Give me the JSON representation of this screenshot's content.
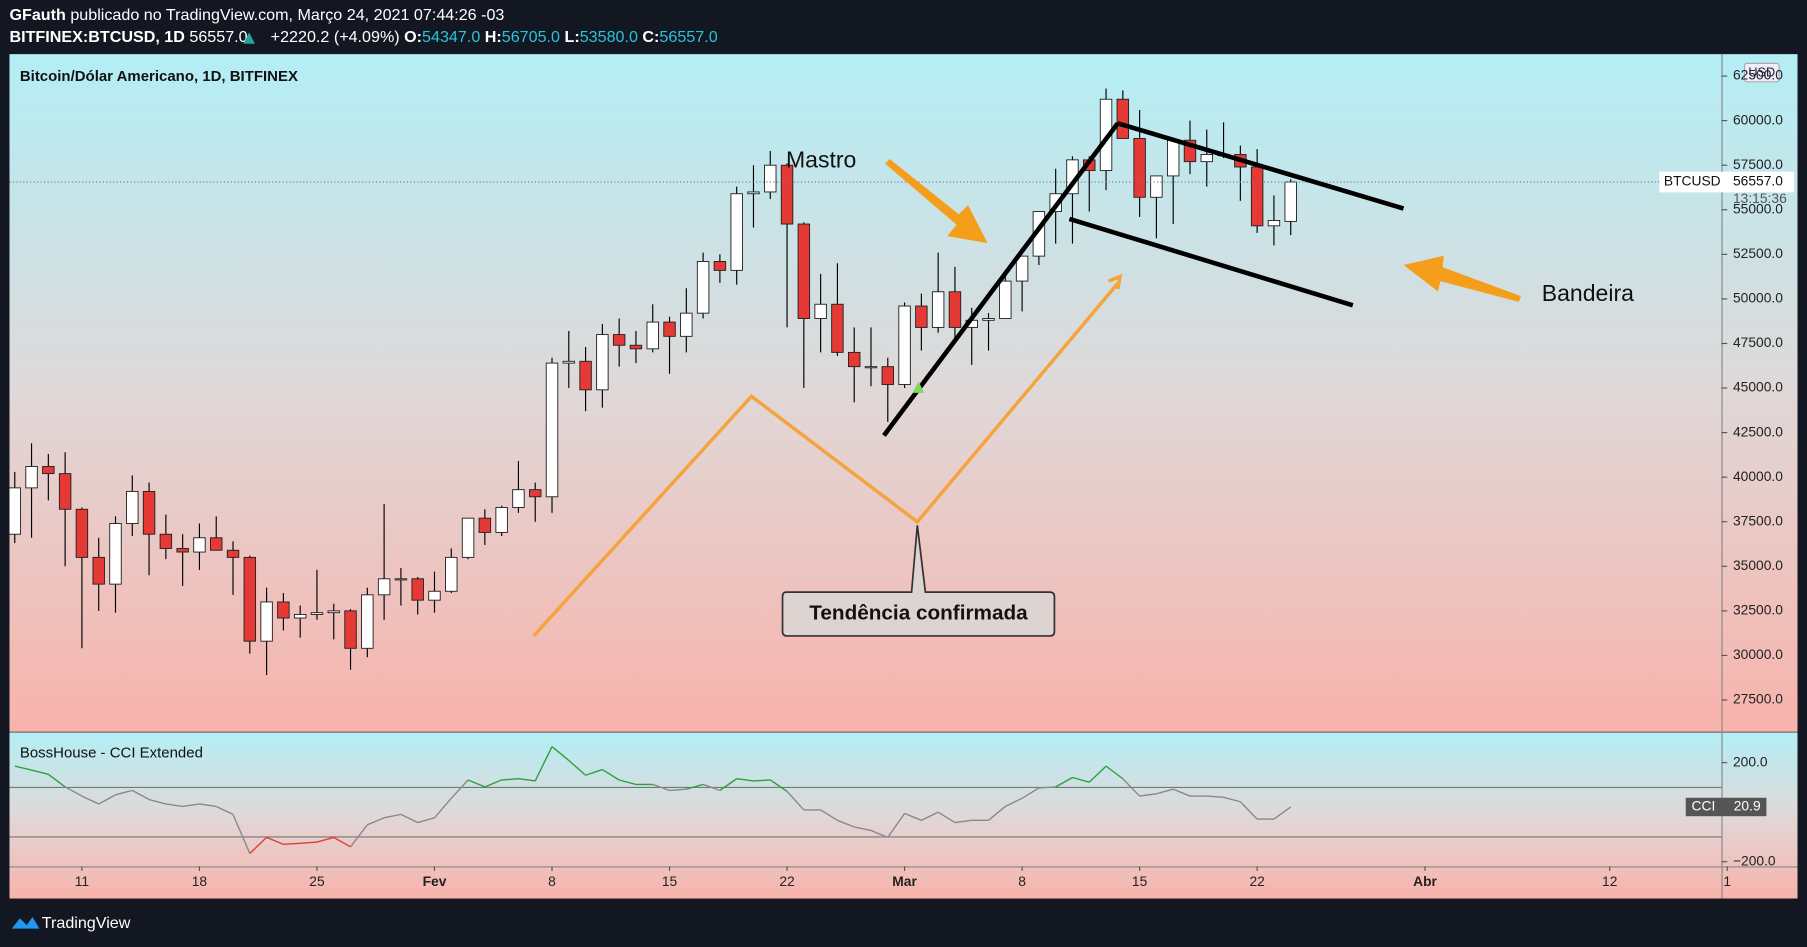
{
  "header": {
    "author": "GFauth",
    "published": "publicado no TradingView.com, Março 24, 2021 07:44:26 -03",
    "symbol": "BITFINEX:BTCUSD, 1D",
    "last": "56557.0",
    "change": "+2220.2 (+4.09%)",
    "o_label": "O:",
    "o": "54347.0",
    "h_label": "H:",
    "h": "56705.0",
    "l_label": "L:",
    "l": "53580.0",
    "c_label": "C:",
    "c": "56557.0"
  },
  "annotations": {
    "mastro": "Mastro",
    "bandeira": "Bandeira",
    "callout": "Tendência confirmada"
  },
  "footer": {
    "brand": "TradingView"
  },
  "chart_data": [
    {
      "type": "candlestick",
      "title": "Bitcoin/Dólar Americano, 1D, BITFINEX",
      "currency": "USD",
      "x": [
        "2021-01-07",
        "2021-01-08",
        "2021-01-09",
        "2021-01-10",
        "2021-01-11",
        "2021-01-12",
        "2021-01-13",
        "2021-01-14",
        "2021-01-15",
        "2021-01-16",
        "2021-01-17",
        "2021-01-18",
        "2021-01-19",
        "2021-01-20",
        "2021-01-21",
        "2021-01-22",
        "2021-01-23",
        "2021-01-24",
        "2021-01-25",
        "2021-01-26",
        "2021-01-27",
        "2021-01-28",
        "2021-01-29",
        "2021-01-30",
        "2021-01-31",
        "2021-02-01",
        "2021-02-02",
        "2021-02-03",
        "2021-02-04",
        "2021-02-05",
        "2021-02-06",
        "2021-02-07",
        "2021-02-08",
        "2021-02-09",
        "2021-02-10",
        "2021-02-11",
        "2021-02-12",
        "2021-02-13",
        "2021-02-14",
        "2021-02-15",
        "2021-02-16",
        "2021-02-17",
        "2021-02-18",
        "2021-02-19",
        "2021-02-20",
        "2021-02-21",
        "2021-02-22",
        "2021-02-23",
        "2021-02-24",
        "2021-02-25",
        "2021-02-26",
        "2021-02-27",
        "2021-02-28",
        "2021-03-01",
        "2021-03-02",
        "2021-03-03",
        "2021-03-04",
        "2021-03-05",
        "2021-03-06",
        "2021-03-07",
        "2021-03-08",
        "2021-03-09",
        "2021-03-10",
        "2021-03-11",
        "2021-03-12",
        "2021-03-13",
        "2021-03-14",
        "2021-03-15",
        "2021-03-16",
        "2021-03-17",
        "2021-03-18",
        "2021-03-19",
        "2021-03-20",
        "2021-03-21",
        "2021-03-22",
        "2021-03-23",
        "2021-03-24"
      ],
      "open": [
        36800,
        39400,
        40600,
        40200,
        38200,
        35500,
        34000,
        37400,
        39200,
        36800,
        36000,
        35800,
        36600,
        35900,
        35500,
        30800,
        33000,
        32100,
        32300,
        32400,
        32500,
        30400,
        33400,
        34300,
        34300,
        33100,
        33600,
        35500,
        37700,
        36900,
        38300,
        39300,
        38900,
        46400,
        46500,
        44900,
        48000,
        47400,
        47200,
        48700,
        47900,
        49200,
        52100,
        51600,
        55900,
        56000,
        57500,
        54200,
        48900,
        49700,
        47000,
        46200,
        46200,
        45200,
        49600,
        48400,
        50400,
        48400,
        48800,
        48900,
        51000,
        52400,
        54900,
        55900,
        57800,
        57200,
        61200,
        59000,
        55700,
        56900,
        58900,
        57700,
        58100,
        58100,
        57400,
        54100,
        54347
      ],
      "high": [
        40300,
        41900,
        41300,
        41400,
        38300,
        36600,
        37800,
        40100,
        39700,
        37900,
        36800,
        37400,
        37800,
        36400,
        35600,
        33800,
        33500,
        32800,
        34800,
        32900,
        32600,
        33800,
        38500,
        34900,
        34400,
        34700,
        36000,
        37700,
        38200,
        38400,
        40900,
        39700,
        46700,
        48200,
        47300,
        48600,
        48900,
        48200,
        49700,
        49000,
        50600,
        52600,
        52500,
        56300,
        57500,
        58300,
        57600,
        54300,
        51400,
        52000,
        48400,
        48400,
        46700,
        49800,
        50300,
        52600,
        51800,
        49500,
        49200,
        51400,
        52400,
        54900,
        57300,
        58000,
        58000,
        61800,
        61700,
        60600,
        56900,
        58900,
        60000,
        59500,
        59900,
        58600,
        58400,
        55800,
        56705
      ],
      "low": [
        36300,
        36600,
        38700,
        35000,
        30400,
        32500,
        32400,
        36700,
        34500,
        35400,
        33900,
        34800,
        35900,
        33400,
        30100,
        28900,
        31400,
        31000,
        32000,
        30900,
        29200,
        29900,
        32000,
        32800,
        32300,
        32400,
        33500,
        35400,
        36200,
        36700,
        38000,
        37500,
        38000,
        45000,
        43700,
        43900,
        46200,
        46400,
        47000,
        45800,
        47000,
        48900,
        50900,
        50800,
        54000,
        55600,
        48400,
        45000,
        47000,
        46800,
        44200,
        45100,
        43100,
        45000,
        47100,
        48100,
        47500,
        46300,
        47100,
        48900,
        49300,
        51900,
        53100,
        53100,
        54900,
        56100,
        59000,
        54600,
        53400,
        54200,
        57000,
        56300,
        57900,
        55500,
        53700,
        53000,
        53580
      ],
      "close": [
        39400,
        40600,
        40200,
        38200,
        35500,
        34000,
        37400,
        39200,
        36800,
        36000,
        35800,
        36600,
        35900,
        35500,
        30800,
        33000,
        32100,
        32300,
        32400,
        32500,
        30400,
        33400,
        34300,
        34300,
        33100,
        33600,
        35500,
        37700,
        36900,
        38300,
        39300,
        38900,
        46400,
        46500,
        44900,
        48000,
        47400,
        47200,
        48700,
        47900,
        49200,
        52100,
        51600,
        55900,
        56000,
        57500,
        54200,
        48900,
        49700,
        47000,
        46200,
        46200,
        45200,
        49600,
        48400,
        50400,
        48400,
        48800,
        48900,
        51000,
        52400,
        54900,
        55900,
        57800,
        57200,
        61200,
        59000,
        55700,
        56900,
        58900,
        57700,
        58100,
        58100,
        57400,
        54100,
        54400,
        56557
      ],
      "up_color": "#ffffff",
      "down_color": "#e53935",
      "wick_color": "#000000",
      "xlim": [
        "2021-01-06",
        "2021-04-19"
      ],
      "xticks": [
        {
          "value": "2021-01-11",
          "label": "11"
        },
        {
          "value": "2021-01-18",
          "label": "18"
        },
        {
          "value": "2021-01-25",
          "label": "25"
        },
        {
          "value": "2021-02-01",
          "label": "Fev"
        },
        {
          "value": "2021-02-08",
          "label": "8"
        },
        {
          "value": "2021-02-15",
          "label": "15"
        },
        {
          "value": "2021-02-22",
          "label": "22"
        },
        {
          "value": "2021-03-01",
          "label": "Mar"
        },
        {
          "value": "2021-03-08",
          "label": "8"
        },
        {
          "value": "2021-03-15",
          "label": "15"
        },
        {
          "value": "2021-03-22",
          "label": "22"
        },
        {
          "value": "2021-04-01",
          "label": "Abr"
        },
        {
          "value": "2021-04-12",
          "label": "12"
        },
        {
          "value": "2021-04-19",
          "label": "1"
        }
      ],
      "ylim": [
        25730,
        63730
      ],
      "yticks": [
        {
          "value": 27500,
          "label": "27500.0"
        },
        {
          "value": 30000,
          "label": "30000.0"
        },
        {
          "value": 32500,
          "label": "32500.0"
        },
        {
          "value": 35000,
          "label": "35000.0"
        },
        {
          "value": 37500,
          "label": "37500.0"
        },
        {
          "value": 40000,
          "label": "40000.0"
        },
        {
          "value": 42500,
          "label": "42500.0"
        },
        {
          "value": 45000,
          "label": "45000.0"
        },
        {
          "value": 47500,
          "label": "47500.0"
        },
        {
          "value": 50000,
          "label": "50000.0"
        },
        {
          "value": 52500,
          "label": "52500.0"
        },
        {
          "value": 55000,
          "label": "55000.0"
        },
        {
          "value": 57500,
          "label": "57500.0"
        },
        {
          "value": 60000,
          "label": "60000.0"
        },
        {
          "value": 62500,
          "label": "62500.0"
        }
      ],
      "price_line": {
        "name": "BTCUSD",
        "value": 56557,
        "label": "56557.0",
        "countdown": "13:15:36"
      }
    },
    {
      "type": "line",
      "title": "BossHouse - CCI Extended",
      "name": "CCI",
      "values": [
        186,
        170,
        153,
        102,
        65,
        33,
        70,
        88,
        51,
        33,
        23,
        33,
        23,
        -9,
        -167,
        -102,
        -130,
        -126,
        -121,
        -102,
        -140,
        -51,
        -23,
        -9,
        -42,
        -23,
        56,
        130,
        102,
        130,
        135,
        126,
        265,
        209,
        149,
        172,
        130,
        112,
        112,
        88,
        93,
        112,
        88,
        135,
        126,
        130,
        84,
        9,
        9,
        -33,
        -60,
        -74,
        -102,
        -5,
        -33,
        0,
        -42,
        -33,
        -33,
        23,
        56,
        98,
        102,
        140,
        121,
        186,
        135,
        65,
        74,
        93,
        65,
        65,
        60,
        42,
        -28,
        -28,
        20.9
      ],
      "last_label": "20.9",
      "colors": {
        "above": "#2e9e3e",
        "below": "#e53935",
        "neutral": "#888888"
      },
      "levels": [
        100,
        -100
      ],
      "ylim": [
        -219,
        321
      ],
      "yticks": [
        {
          "value": 200,
          "label": "200.0"
        },
        {
          "value": -200,
          "label": "−200.0"
        }
      ]
    }
  ]
}
